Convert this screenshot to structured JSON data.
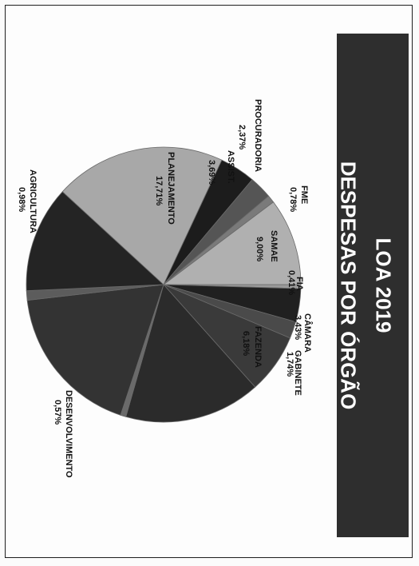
{
  "title": {
    "line1": "LOA 2019",
    "line2": "DESPESAS POR ÓRGÃO"
  },
  "colors": {
    "title_band": "#2e2e2e",
    "title_text": "#ffffff"
  },
  "chart_data": {
    "type": "pie",
    "title": "LOA 2019 — DESPESAS POR ÓRGÃO",
    "slices": [
      {
        "label": "FIA",
        "pct_label": "0,41%",
        "value": 0.41,
        "color": "#9a9a9a"
      },
      {
        "label": "CÂMARA",
        "pct_label": "3,43%",
        "value": 3.43,
        "color": "#202020"
      },
      {
        "label": "GABINETE",
        "pct_label": "1,74%",
        "value": 1.74,
        "color": "#4a4a4a"
      },
      {
        "label": "FAZENDA",
        "pct_label": "6,18%",
        "value": 6.18,
        "color": "#3a3a3a"
      },
      {
        "label": "",
        "pct_label": "",
        "value": 14.1,
        "color": "#2b2b2b"
      },
      {
        "label": "DESENVOLVIMENTO",
        "pct_label": "0,57%",
        "value": 0.57,
        "color": "#6a6a6a"
      },
      {
        "label": "",
        "pct_label": "",
        "value": 15.9,
        "color": "#333333"
      },
      {
        "label": "AGRICULTURA",
        "pct_label": "0,98%",
        "value": 0.98,
        "color": "#5c5c5c"
      },
      {
        "label": "",
        "pct_label": "",
        "value": 11.0,
        "color": "#242424"
      },
      {
        "label": "PLANEJAMENTO",
        "pct_label": "17,71%",
        "value": 17.71,
        "color": "#a8a8a8"
      },
      {
        "label": "ASSIST.",
        "pct_label": "3,69%",
        "value": 3.69,
        "color": "#1c1c1c"
      },
      {
        "label": "PROCURADORIA",
        "pct_label": "2,37%",
        "value": 2.37,
        "color": "#555555"
      },
      {
        "label": "FME",
        "pct_label": "0,78%",
        "value": 0.78,
        "color": "#7a7a7a"
      },
      {
        "label": "SAMAE",
        "pct_label": "9,00%",
        "value": 9.0,
        "color": "#b0b0b0"
      }
    ]
  }
}
